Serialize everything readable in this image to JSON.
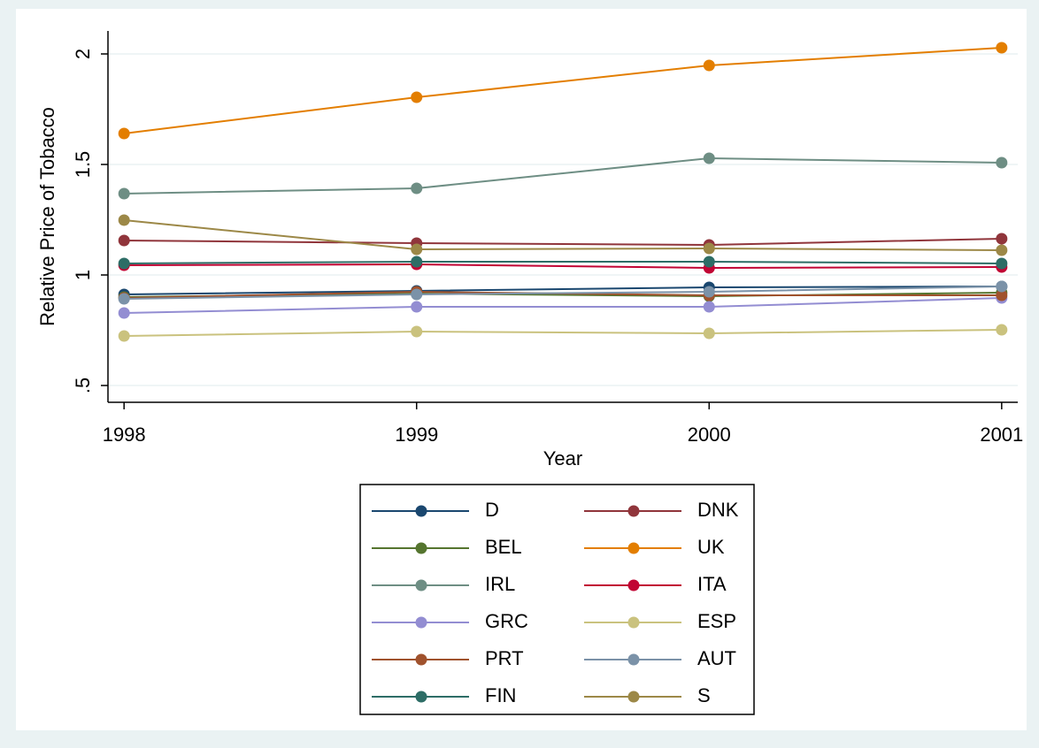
{
  "chart_data": {
    "type": "line",
    "x_label": "Year",
    "y_label": "Relative Price of Tobacco",
    "x": [
      1998,
      1999,
      2000,
      2001
    ],
    "xlim": [
      1997.945,
      2001.055
    ],
    "xticks": [
      1998,
      1999,
      2000,
      2001
    ],
    "ylim": [
      0.424,
      2.104
    ],
    "yticks": [
      {
        "value": 0.5,
        "label": ".5"
      },
      1,
      1.5,
      2
    ],
    "grid": true,
    "legend": "bottom",
    "series": [
      {
        "name": "D",
        "color": "#1a476f",
        "values": [
          0.912,
          0.928,
          0.944,
          0.948
        ]
      },
      {
        "name": "DNK",
        "color": "#90353b",
        "values": [
          1.156,
          1.144,
          1.136,
          1.164
        ]
      },
      {
        "name": "BEL",
        "color": "#55752f",
        "values": [
          0.9,
          0.916,
          0.904,
          0.92
        ]
      },
      {
        "name": "UK",
        "color": "#e37e00",
        "values": [
          1.64,
          1.804,
          1.948,
          2.028
        ]
      },
      {
        "name": "IRL",
        "color": "#6e8e84",
        "values": [
          1.368,
          1.392,
          1.528,
          1.508
        ]
      },
      {
        "name": "ITA",
        "color": "#c10534",
        "values": [
          1.044,
          1.048,
          1.032,
          1.036
        ]
      },
      {
        "name": "GRC",
        "color": "#938dd2",
        "values": [
          0.828,
          0.856,
          0.856,
          0.896
        ]
      },
      {
        "name": "ESP",
        "color": "#cac27e",
        "values": [
          0.724,
          0.744,
          0.736,
          0.752
        ]
      },
      {
        "name": "PRT",
        "color": "#a0522d",
        "values": [
          0.896,
          0.924,
          0.908,
          0.908
        ]
      },
      {
        "name": "AUT",
        "color": "#7b92a8",
        "values": [
          0.892,
          0.912,
          0.924,
          0.948
        ]
      },
      {
        "name": "FIN",
        "color": "#2d6d66",
        "values": [
          1.052,
          1.06,
          1.06,
          1.052
        ]
      },
      {
        "name": "S",
        "color": "#9c8847",
        "values": [
          1.248,
          1.116,
          1.12,
          1.112
        ]
      }
    ]
  }
}
